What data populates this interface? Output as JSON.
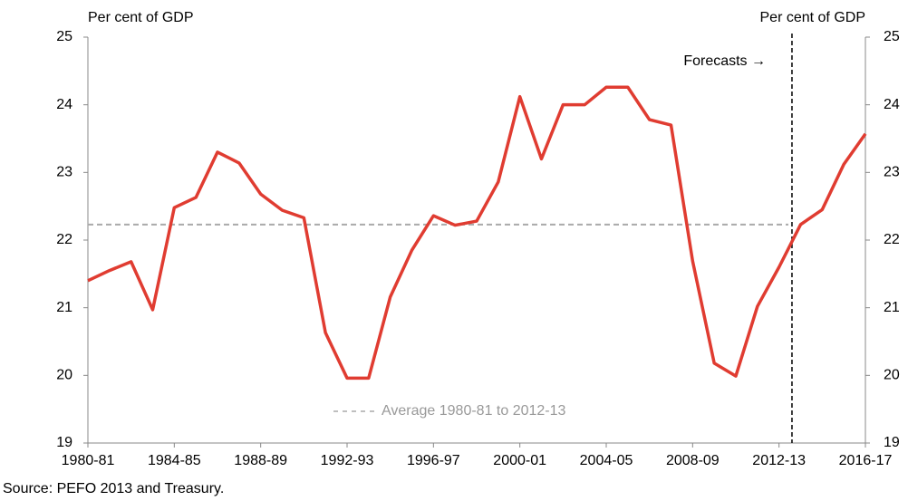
{
  "chart_data": {
    "type": "line",
    "ylabel": "Per cent of GDP",
    "y2label": "Per cent of GDP",
    "source": "Source: PEFO 2013 and Treasury.",
    "annotation": "Forecasts →",
    "categories": [
      "1980-81",
      null,
      null,
      null,
      "1984-85",
      null,
      null,
      null,
      "1988-89",
      null,
      null,
      null,
      "1992-93",
      null,
      null,
      null,
      "1996-97",
      null,
      null,
      null,
      "2000-01",
      null,
      null,
      null,
      "2004-05",
      null,
      null,
      null,
      "2008-09",
      null,
      null,
      null,
      "2012-13",
      null,
      null,
      null,
      "2016-17"
    ],
    "series": [
      {
        "name": "Per cent of GDP",
        "color": "#e03c31",
        "values": [
          21.4,
          21.55,
          21.68,
          20.97,
          22.48,
          22.63,
          23.3,
          23.14,
          22.68,
          22.44,
          22.33,
          20.63,
          19.96,
          19.96,
          21.16,
          21.85,
          22.36,
          22.22,
          22.28,
          22.86,
          24.12,
          23.2,
          24.0,
          24.0,
          24.26,
          24.26,
          23.78,
          23.7,
          21.69,
          20.18,
          19.99,
          21.02,
          21.6,
          22.23,
          22.45,
          23.12,
          23.57
        ]
      }
    ],
    "average": {
      "value": 22.23,
      "label": "Average 1980-81 to 2012-13"
    },
    "ylim": [
      19,
      25
    ],
    "yticks": [
      19,
      20,
      21,
      22,
      23,
      24,
      25
    ],
    "y2lim": [
      19,
      25
    ],
    "y2ticks": [
      19,
      20,
      21,
      22,
      23,
      24,
      25
    ]
  }
}
